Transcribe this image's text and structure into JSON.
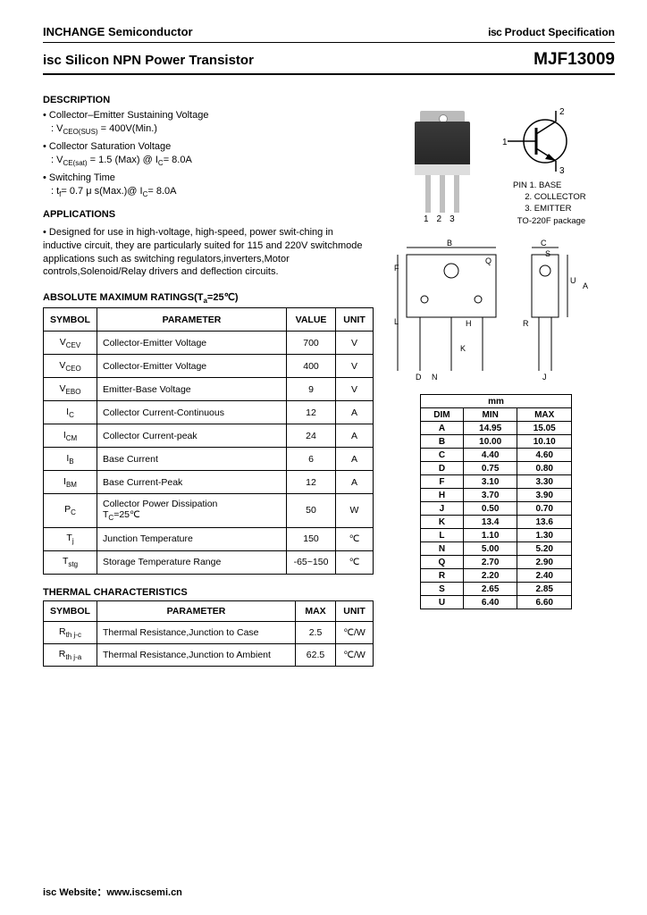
{
  "header": {
    "company": "INCHANGE Semiconductor",
    "spec_prefix": "isc",
    "spec": " Product Specification",
    "title_prefix": "isc",
    "title": " Silicon NPN Power Transistor",
    "part": "MJF13009"
  },
  "description": {
    "heading": "DESCRIPTION",
    "items": [
      {
        "line": "Collector–Emitter Sustaining Voltage",
        "sub": ": V_CEO(SUS) = 400V(Min.)"
      },
      {
        "line": "Collector Saturation Voltage",
        "sub": ": V_CE(sat) = 1.5 (Max) @ I_C= 8.0A"
      },
      {
        "line": "Switching Time",
        "sub": ": t_f= 0.7 μ s(Max.)@ I_C= 8.0A"
      }
    ]
  },
  "applications": {
    "heading": "APPLICATIONS",
    "text": "Designed for use in high-voltage, high-speed, power swit-ching in inductive circuit,   they are particularly suited for 115 and 220V switchmode applications such as switching regulators,inverters,Motor controls,Solenoid/Relay drivers and deflection circuits."
  },
  "pins": {
    "heading": "PIN",
    "p1": "1. BASE",
    "p2": "2. COLLECTOR",
    "p3": "3. EMITTER",
    "package": "TO-220F package"
  },
  "abs": {
    "heading": "ABSOLUTE MAXIMUM RATINGS(T_a=25℃)",
    "cols": [
      "SYMBOL",
      "PARAMETER",
      "VALUE",
      "UNIT"
    ],
    "rows": [
      [
        "V_CEV",
        "Collector-Emitter Voltage",
        "700",
        "V"
      ],
      [
        "V_CEO",
        "Collector-Emitter Voltage",
        "400",
        "V"
      ],
      [
        "V_EBO",
        "Emitter-Base Voltage",
        "9",
        "V"
      ],
      [
        "I_C",
        "Collector Current-Continuous",
        "12",
        "A"
      ],
      [
        "I_CM",
        "Collector Current-peak",
        "24",
        "A"
      ],
      [
        "I_B",
        "Base Current",
        "6",
        "A"
      ],
      [
        "I_BM",
        "Base Current-Peak",
        "12",
        "A"
      ],
      [
        "P_C",
        "Collector Power Dissipation T_C=25℃",
        "50",
        "W"
      ],
      [
        "T_j",
        "Junction Temperature",
        "150",
        "℃"
      ],
      [
        "T_stg",
        "Storage Temperature Range",
        "-65~150",
        "℃"
      ]
    ]
  },
  "thermal": {
    "heading": "THERMAL CHARACTERISTICS",
    "cols": [
      "SYMBOL",
      "PARAMETER",
      "MAX",
      "UNIT"
    ],
    "rows": [
      [
        "R_th j-c",
        "Thermal Resistance,Junction to Case",
        "2.5",
        "℃/W"
      ],
      [
        "R_th j-a",
        "Thermal Resistance,Junction to Ambient",
        "62.5",
        "℃/W"
      ]
    ]
  },
  "dimensions": {
    "heading": "mm",
    "cols": [
      "DIM",
      "MIN",
      "MAX"
    ],
    "rows": [
      [
        "A",
        "14.95",
        "15.05"
      ],
      [
        "B",
        "10.00",
        "10.10"
      ],
      [
        "C",
        "4.40",
        "4.60"
      ],
      [
        "D",
        "0.75",
        "0.80"
      ],
      [
        "F",
        "3.10",
        "3.30"
      ],
      [
        "H",
        "3.70",
        "3.90"
      ],
      [
        "J",
        "0.50",
        "0.70"
      ],
      [
        "K",
        "13.4",
        "13.6"
      ],
      [
        "L",
        "1.10",
        "1.30"
      ],
      [
        "N",
        "5.00",
        "5.20"
      ],
      [
        "Q",
        "2.70",
        "2.90"
      ],
      [
        "R",
        "2.20",
        "2.40"
      ],
      [
        "S",
        "2.65",
        "2.85"
      ],
      [
        "U",
        "6.40",
        "6.60"
      ]
    ]
  },
  "footer": {
    "label": "isc Website：",
    "url": "www.iscsemi.cn"
  },
  "labels": {
    "mech_letters": [
      "B",
      "C",
      "S",
      "Q",
      "F",
      "U",
      "A",
      "L",
      "H",
      "R",
      "K",
      "D",
      "N",
      "J"
    ]
  }
}
